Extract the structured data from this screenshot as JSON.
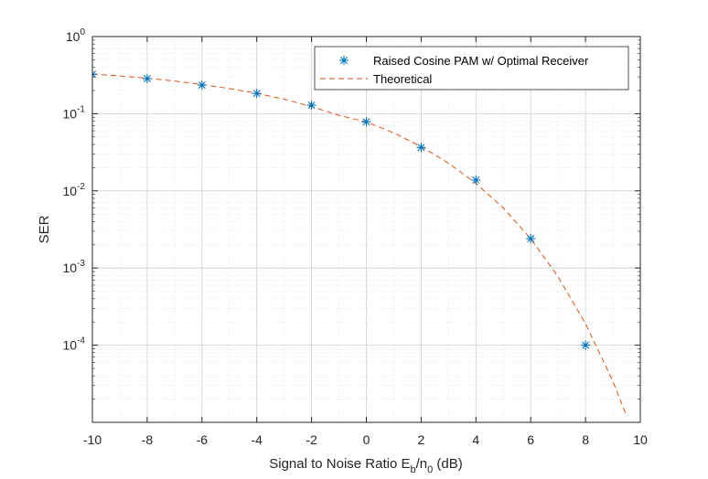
{
  "chart_data": {
    "type": "scatter",
    "xlabel": "Signal to Noise Ratio E_b/n_0 (dB)",
    "xlabel_parts": {
      "before": "Signal to Noise Ratio E",
      "sub1": "b",
      "middle": "/n",
      "sub2": "0",
      "after": " (dB)"
    },
    "ylabel": "SER",
    "xlim": [
      -10,
      10
    ],
    "ylim": [
      1e-05,
      1
    ],
    "yscale": "log",
    "grid": true,
    "minor_grid": true,
    "legend_position": "top-right",
    "x_ticks": [
      -10,
      -8,
      -6,
      -4,
      -2,
      0,
      2,
      4,
      6,
      8,
      10
    ],
    "x_tick_labels": [
      "-10",
      "-8",
      "-6",
      "-4",
      "-2",
      "0",
      "2",
      "4",
      "6",
      "8",
      "10"
    ],
    "y_ticks": [
      {
        "value": 1,
        "base": "10",
        "exp": "0"
      },
      {
        "value": 0.1,
        "base": "10",
        "exp": "-1"
      },
      {
        "value": 0.01,
        "base": "10",
        "exp": "-2"
      },
      {
        "value": 0.001,
        "base": "10",
        "exp": "-3"
      },
      {
        "value": 0.0001,
        "base": "10",
        "exp": "-4"
      }
    ],
    "series": [
      {
        "name": "Raised Cosine PAM w/ Optimal Receiver",
        "style": "marker-star",
        "color": "#0072BD",
        "x": [
          -10,
          -8,
          -6,
          -4,
          -2,
          0,
          2,
          4,
          6,
          8
        ],
        "y": [
          0.325,
          0.285,
          0.235,
          0.183,
          0.129,
          0.0785,
          0.0365,
          0.0138,
          0.0024,
          0.0001
        ]
      },
      {
        "name": "Theoretical",
        "style": "dashed-line",
        "color": "#D95319",
        "x": [
          -10,
          -9,
          -8,
          -7,
          -6,
          -5,
          -4,
          -3,
          -2,
          -1,
          0,
          1,
          2,
          3,
          4,
          5,
          6,
          7,
          8,
          9,
          9.5
        ],
        "y": [
          0.327,
          0.309,
          0.288,
          0.265,
          0.239,
          0.212,
          0.184,
          0.154,
          0.124,
          0.0953,
          0.0786,
          0.0563,
          0.0375,
          0.0229,
          0.0125,
          0.006,
          0.0024,
          0.00077,
          0.00019,
          3.4e-05,
          1.2e-05
        ]
      }
    ]
  }
}
